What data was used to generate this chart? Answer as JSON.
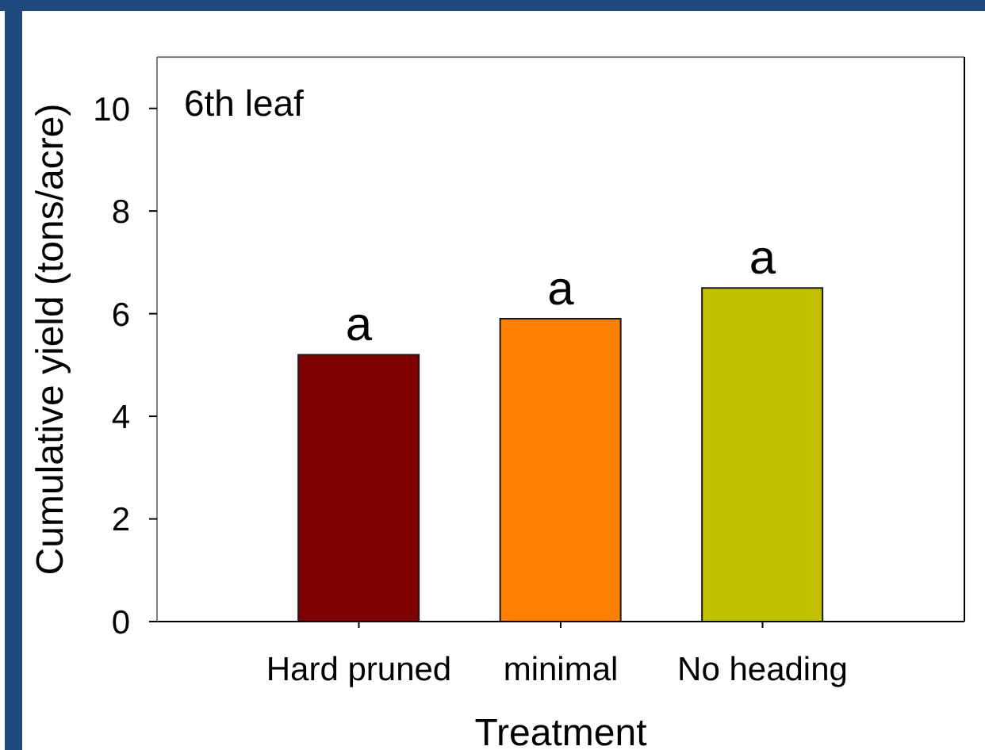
{
  "chart_data": {
    "type": "bar",
    "title": "6th leaf",
    "xlabel": "Treatment",
    "ylabel": "Cumulative yield (tons/acre)",
    "categories": [
      "Hard pruned",
      "minimal",
      "No heading"
    ],
    "values": [
      5.2,
      5.9,
      6.5
    ],
    "colors": [
      "#800000",
      "#ff8000",
      "#c0c000"
    ],
    "ylim": [
      0,
      11
    ],
    "yticks": [
      0,
      2,
      4,
      6,
      8,
      10
    ],
    "annotations": [
      {
        "text": "a",
        "x": "Hard pruned",
        "y": 5.2
      },
      {
        "text": "a",
        "x": "minimal",
        "y": 5.9
      },
      {
        "text": "a",
        "x": "No heading",
        "y": 6.5
      }
    ]
  }
}
